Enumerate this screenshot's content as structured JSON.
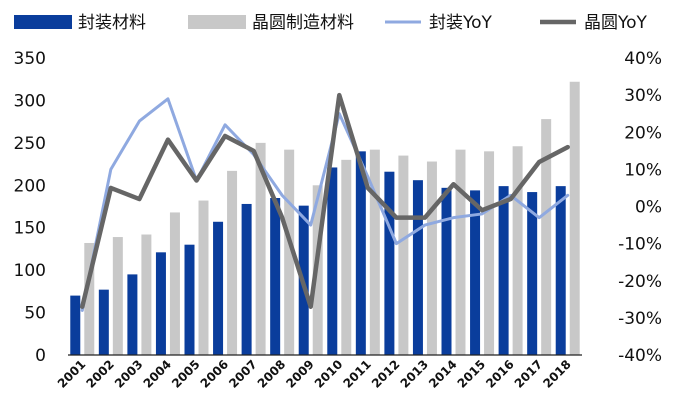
{
  "chart_data": {
    "type": "bar",
    "categories": [
      "2001",
      "2002",
      "2003",
      "2004",
      "2005",
      "2006",
      "2007",
      "2008",
      "2009",
      "2010",
      "2011",
      "2012",
      "2013",
      "2014",
      "2015",
      "2016",
      "2017",
      "2018"
    ],
    "series": [
      {
        "name": "封装材料",
        "kind": "bar",
        "axis": "left",
        "color": "#0a3d9c",
        "values": [
          70,
          77,
          95,
          121,
          130,
          157,
          178,
          185,
          176,
          221,
          240,
          216,
          206,
          197,
          194,
          199,
          192,
          199
        ]
      },
      {
        "name": "晶圆制造材料",
        "kind": "bar",
        "axis": "left",
        "color": "#c8c8c8",
        "values": [
          132,
          139,
          142,
          168,
          182,
          217,
          250,
          242,
          200,
          230,
          242,
          235,
          228,
          242,
          240,
          246,
          278,
          322
        ]
      },
      {
        "name": "封装YoY",
        "kind": "line",
        "axis": "right",
        "color": "#8fa9e0",
        "values": [
          -28,
          10,
          23,
          29,
          7,
          22,
          14,
          3,
          -5,
          25,
          8,
          -10,
          -5,
          -3,
          -2,
          3,
          -3,
          3
        ]
      },
      {
        "name": "晶圆YoY",
        "kind": "line",
        "axis": "right",
        "color": "#666666",
        "values": [
          -27,
          5,
          2,
          18,
          7,
          19,
          15,
          -3,
          -27,
          30,
          5,
          -3,
          -3,
          6,
          -1,
          2,
          12,
          16
        ]
      }
    ],
    "y_left": {
      "min": 0,
      "max": 350,
      "ticks": [
        "0",
        "50",
        "100",
        "150",
        "200",
        "250",
        "300",
        "350"
      ]
    },
    "y_right": {
      "min": -40,
      "max": 40,
      "ticks": [
        "-40%",
        "-30%",
        "-20%",
        "-10%",
        "0%",
        "10%",
        "20%",
        "30%",
        "40%"
      ]
    },
    "grid": false,
    "legend_position": "top"
  }
}
